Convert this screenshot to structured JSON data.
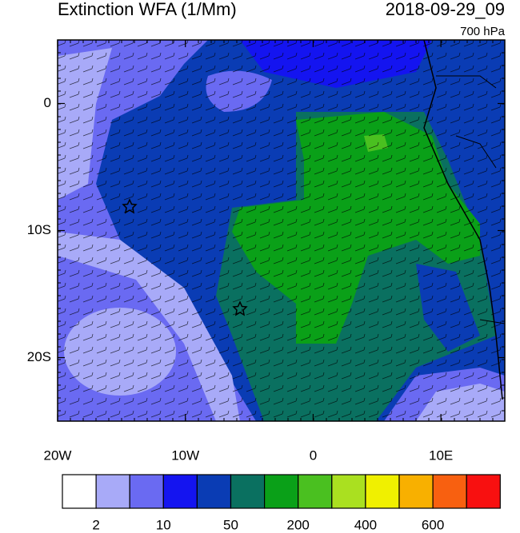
{
  "header": {
    "title": "Extinction WFA (1/Mm)",
    "time": "2018-09-29_09",
    "level": "700 hPa"
  },
  "map": {
    "lon_range": [
      -20,
      15
    ],
    "lat_range": [
      5,
      -25
    ],
    "xticks": [
      {
        "value": -20,
        "label": "20W"
      },
      {
        "value": -10,
        "label": "10W"
      },
      {
        "value": 0,
        "label": "0"
      },
      {
        "value": 10,
        "label": "10E"
      }
    ],
    "yticks": [
      {
        "value": 0,
        "label": "0"
      },
      {
        "value": -10,
        "label": "10S"
      },
      {
        "value": -20,
        "label": "20S"
      }
    ]
  },
  "colorbar": {
    "colors": [
      "#ffffff",
      "#a8aaf8",
      "#6a6af2",
      "#1414f0",
      "#0a3cb4",
      "#0a7060",
      "#0aa018",
      "#4ac020",
      "#aae020",
      "#f0f000",
      "#f8b000",
      "#f86010",
      "#f81010"
    ],
    "labels": [
      "2",
      "10",
      "50",
      "200",
      "400",
      "600"
    ]
  }
}
